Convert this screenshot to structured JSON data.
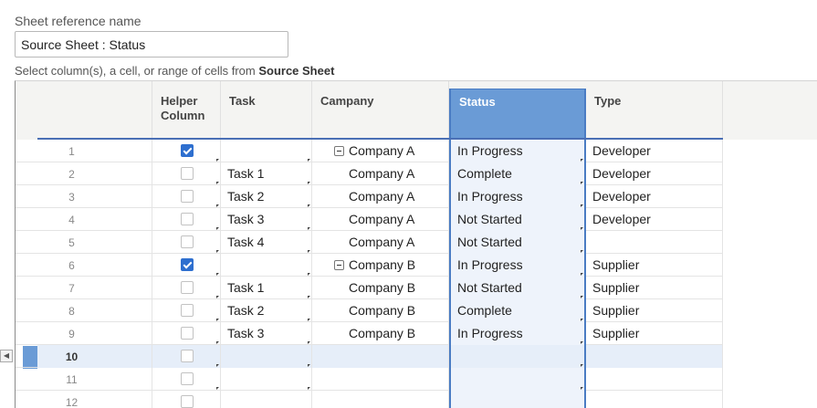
{
  "sheet_reference": {
    "label": "Sheet reference name",
    "value": "Source Sheet : Status"
  },
  "select_hint": {
    "prefix": "Select column(s), a cell, or range of cells from ",
    "sheet_name": "Source Sheet"
  },
  "columns": {
    "helper_line1": "Helper",
    "helper_line2": "Column",
    "task": "Task",
    "company": "Campany",
    "status": "Status",
    "type": "Type"
  },
  "rows": [
    {
      "num": "1",
      "checked": true,
      "task": "",
      "company": "Company A",
      "parent": true,
      "status": "In Progress",
      "type": "Developer"
    },
    {
      "num": "2",
      "checked": false,
      "task": "Task 1",
      "company": "Company A",
      "parent": false,
      "status": "Complete",
      "type": "Developer"
    },
    {
      "num": "3",
      "checked": false,
      "task": "Task 2",
      "company": "Company A",
      "parent": false,
      "status": "In Progress",
      "type": "Developer"
    },
    {
      "num": "4",
      "checked": false,
      "task": "Task 3",
      "company": "Company A",
      "parent": false,
      "status": "Not Started",
      "type": "Developer"
    },
    {
      "num": "5",
      "checked": false,
      "task": "Task 4",
      "company": "Company A",
      "parent": false,
      "status": "Not Started",
      "type": ""
    },
    {
      "num": "6",
      "checked": true,
      "task": "",
      "company": "Company B",
      "parent": true,
      "status": "In Progress",
      "type": "Supplier"
    },
    {
      "num": "7",
      "checked": false,
      "task": "Task 1",
      "company": "Company B",
      "parent": false,
      "status": "Not Started",
      "type": "Supplier"
    },
    {
      "num": "8",
      "checked": false,
      "task": "Task 2",
      "company": "Company B",
      "parent": false,
      "status": "Complete",
      "type": "Supplier"
    },
    {
      "num": "9",
      "checked": false,
      "task": "Task 3",
      "company": "Company B",
      "parent": false,
      "status": "In Progress",
      "type": "Supplier"
    },
    {
      "num": "10",
      "checked": false,
      "task": "",
      "company": "",
      "parent": false,
      "status": "",
      "type": "",
      "selected": true
    },
    {
      "num": "11",
      "checked": false,
      "task": "",
      "company": "",
      "parent": false,
      "status": "",
      "type": ""
    },
    {
      "num": "12",
      "checked": false,
      "task": "",
      "company": "",
      "parent": false,
      "status": "",
      "type": ""
    }
  ],
  "colors": {
    "accent": "#6a9bd6",
    "checkbox_on": "#2e6fcf"
  }
}
